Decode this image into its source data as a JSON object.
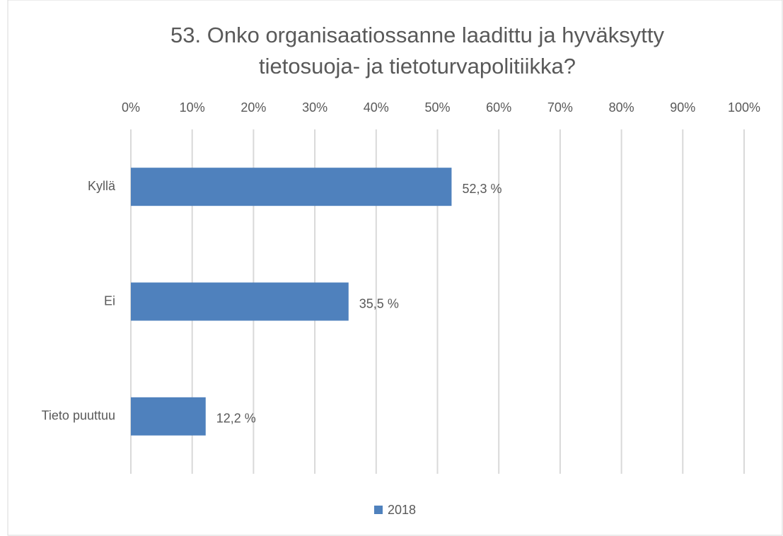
{
  "chart_data": {
    "type": "barh",
    "title": "53. Onko organisaatiossanne laadittu ja hyväksytty tietosuoja- ja tietoturvapolitiikka?",
    "categories": [
      "Kyllä",
      "Ei",
      "Tieto puuttuu"
    ],
    "series": [
      {
        "name": "2018",
        "color": "#4f81bd",
        "values": [
          52.3,
          35.5,
          12.2
        ],
        "value_labels": [
          "52,3 %",
          "35,5 %",
          "12,2 %"
        ]
      }
    ],
    "xlim": [
      0,
      100
    ],
    "xticks": [
      {
        "value": 0,
        "label": "0%"
      },
      {
        "value": 10,
        "label": "10%"
      },
      {
        "value": 20,
        "label": "20%"
      },
      {
        "value": 30,
        "label": "30%"
      },
      {
        "value": 40,
        "label": "40%"
      },
      {
        "value": 50,
        "label": "50%"
      },
      {
        "value": 60,
        "label": "60%"
      },
      {
        "value": 70,
        "label": "70%"
      },
      {
        "value": 80,
        "label": "80%"
      },
      {
        "value": 90,
        "label": "90%"
      },
      {
        "value": 100,
        "label": "100%"
      }
    ],
    "grid": true,
    "legend": "bottom"
  }
}
